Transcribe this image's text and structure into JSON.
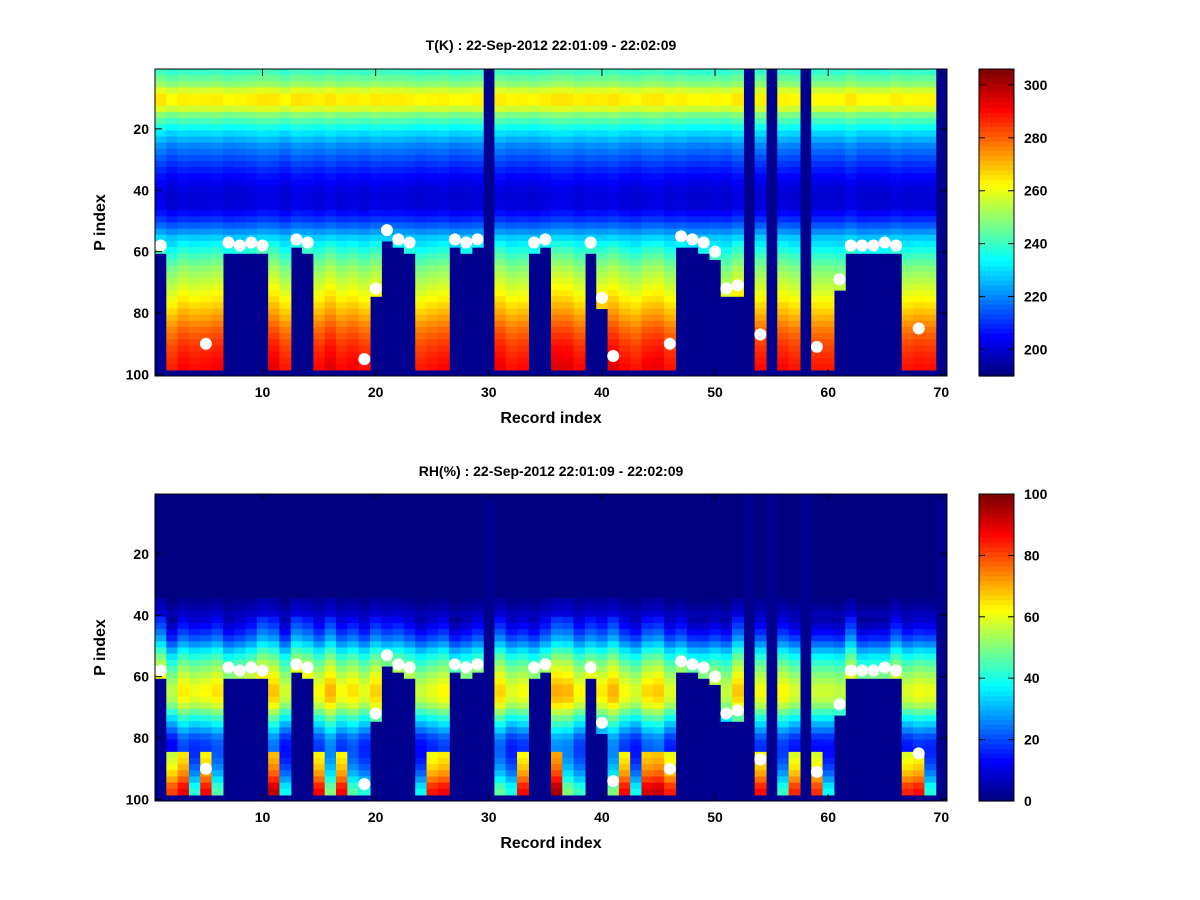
{
  "chart_data": [
    {
      "type": "heatmap",
      "title": "T(K) : 22-Sep-2012 22:01:09 - 22:02:09",
      "xlabel": "Record index",
      "ylabel": "P index",
      "xlim": [
        0.5,
        70.5
      ],
      "ylim": [
        0.5,
        100.5
      ],
      "y_reversed": true,
      "x_ticks": [
        10,
        20,
        30,
        40,
        50,
        60,
        70
      ],
      "y_ticks": [
        20,
        40,
        60,
        80,
        100
      ],
      "colormap": "jet",
      "color_range": [
        190,
        306
      ],
      "colorbar_ticks": [
        200,
        220,
        240,
        260,
        280,
        300
      ],
      "invalid_color": "#00008f",
      "profile": {
        "p": [
          1,
          5,
          8,
          10,
          12,
          15,
          20,
          25,
          30,
          35,
          40,
          45,
          50,
          55,
          60,
          65,
          70,
          75,
          80,
          85,
          90,
          95,
          98
        ],
        "value": [
          240,
          250,
          262,
          266,
          262,
          248,
          232,
          220,
          212,
          205,
          200,
          201,
          212,
          228,
          240,
          250,
          257,
          264,
          272,
          280,
          286,
          290,
          292
        ]
      },
      "columns_full_missing": [
        30,
        53,
        55,
        58,
        70
      ],
      "surface_points": [
        {
          "x": 1,
          "y": 58
        },
        {
          "x": 5,
          "y": 90
        },
        {
          "x": 7,
          "y": 57
        },
        {
          "x": 8,
          "y": 58
        },
        {
          "x": 9,
          "y": 57
        },
        {
          "x": 10,
          "y": 58
        },
        {
          "x": 13,
          "y": 56
        },
        {
          "x": 14,
          "y": 57
        },
        {
          "x": 19,
          "y": 95
        },
        {
          "x": 20,
          "y": 72
        },
        {
          "x": 21,
          "y": 53
        },
        {
          "x": 22,
          "y": 56
        },
        {
          "x": 23,
          "y": 57
        },
        {
          "x": 27,
          "y": 56
        },
        {
          "x": 28,
          "y": 57
        },
        {
          "x": 29,
          "y": 56
        },
        {
          "x": 34,
          "y": 57
        },
        {
          "x": 35,
          "y": 56
        },
        {
          "x": 39,
          "y": 57
        },
        {
          "x": 40,
          "y": 75
        },
        {
          "x": 41,
          "y": 94
        },
        {
          "x": 46,
          "y": 90
        },
        {
          "x": 47,
          "y": 55
        },
        {
          "x": 48,
          "y": 56
        },
        {
          "x": 49,
          "y": 57
        },
        {
          "x": 50,
          "y": 60
        },
        {
          "x": 51,
          "y": 72
        },
        {
          "x": 52,
          "y": 71
        },
        {
          "x": 54,
          "y": 87
        },
        {
          "x": 59,
          "y": 91
        },
        {
          "x": 61,
          "y": 69
        },
        {
          "x": 62,
          "y": 58
        },
        {
          "x": 63,
          "y": 58
        },
        {
          "x": 64,
          "y": 58
        },
        {
          "x": 65,
          "y": 57
        },
        {
          "x": 66,
          "y": 58
        },
        {
          "x": 68,
          "y": 85
        }
      ]
    },
    {
      "type": "heatmap",
      "title": "RH(%) : 22-Sep-2012 22:01:09 - 22:02:09",
      "xlabel": "Record index",
      "ylabel": "P index",
      "xlim": [
        0.5,
        70.5
      ],
      "ylim": [
        0.5,
        100.5
      ],
      "y_reversed": true,
      "x_ticks": [
        10,
        20,
        30,
        40,
        50,
        60,
        70
      ],
      "y_ticks": [
        20,
        40,
        60,
        80,
        100
      ],
      "colormap": "jet",
      "color_range": [
        0,
        100
      ],
      "colorbar_ticks": [
        0,
        20,
        40,
        60,
        80,
        100
      ],
      "invalid_color": "#00008f",
      "profile": {
        "p": [
          1,
          30,
          36,
          40,
          44,
          48,
          52,
          56,
          60,
          64,
          68,
          72,
          76,
          80,
          84,
          88,
          92,
          95,
          98
        ],
        "value": [
          0,
          0,
          3,
          8,
          15,
          25,
          40,
          50,
          58,
          64,
          60,
          45,
          32,
          20,
          18,
          22,
          30,
          40,
          45
        ]
      },
      "columns_full_missing": [
        30,
        53,
        55,
        58,
        70
      ],
      "surface_points": [
        {
          "x": 1,
          "y": 58
        },
        {
          "x": 5,
          "y": 90
        },
        {
          "x": 7,
          "y": 57
        },
        {
          "x": 8,
          "y": 58
        },
        {
          "x": 9,
          "y": 57
        },
        {
          "x": 10,
          "y": 58
        },
        {
          "x": 13,
          "y": 56
        },
        {
          "x": 14,
          "y": 57
        },
        {
          "x": 19,
          "y": 95
        },
        {
          "x": 20,
          "y": 72
        },
        {
          "x": 21,
          "y": 53
        },
        {
          "x": 22,
          "y": 56
        },
        {
          "x": 23,
          "y": 57
        },
        {
          "x": 27,
          "y": 56
        },
        {
          "x": 28,
          "y": 57
        },
        {
          "x": 29,
          "y": 56
        },
        {
          "x": 34,
          "y": 57
        },
        {
          "x": 35,
          "y": 56
        },
        {
          "x": 39,
          "y": 57
        },
        {
          "x": 40,
          "y": 75
        },
        {
          "x": 41,
          "y": 94
        },
        {
          "x": 46,
          "y": 90
        },
        {
          "x": 47,
          "y": 55
        },
        {
          "x": 48,
          "y": 56
        },
        {
          "x": 49,
          "y": 57
        },
        {
          "x": 50,
          "y": 60
        },
        {
          "x": 51,
          "y": 72
        },
        {
          "x": 52,
          "y": 71
        },
        {
          "x": 54,
          "y": 87
        },
        {
          "x": 59,
          "y": 91
        },
        {
          "x": 61,
          "y": 69
        },
        {
          "x": 62,
          "y": 58
        },
        {
          "x": 63,
          "y": 58
        },
        {
          "x": 64,
          "y": 58
        },
        {
          "x": 65,
          "y": 57
        },
        {
          "x": 66,
          "y": 58
        },
        {
          "x": 68,
          "y": 85
        }
      ]
    }
  ]
}
